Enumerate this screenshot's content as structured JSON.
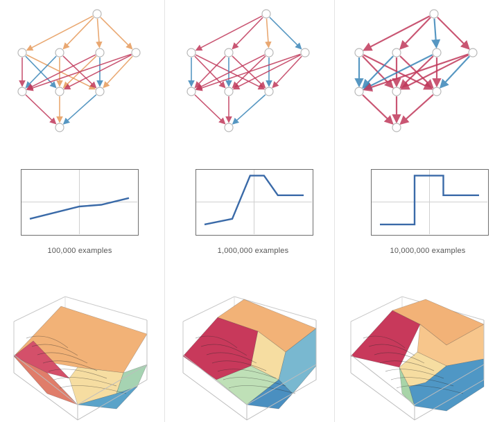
{
  "columns": [
    {
      "caption": "100,000 examples",
      "line_values": [
        [
          0,
          0.2
        ],
        [
          0.5,
          0.42
        ],
        [
          0.72,
          0.45
        ],
        [
          1,
          0.57
        ]
      ]
    },
    {
      "caption": "1,000,000 examples",
      "line_values": [
        [
          0,
          0.1
        ],
        [
          0.28,
          0.2
        ],
        [
          0.46,
          0.97
        ],
        [
          0.6,
          0.97
        ],
        [
          0.74,
          0.62
        ],
        [
          1,
          0.62
        ]
      ]
    },
    {
      "caption": "10,000,000 examples",
      "line_values": [
        [
          0,
          0.1
        ],
        [
          0.35,
          0.1
        ],
        [
          0.35,
          0.97
        ],
        [
          0.64,
          0.97
        ],
        [
          0.64,
          0.62
        ],
        [
          1,
          0.62
        ]
      ]
    }
  ],
  "colors": {
    "red": "#c0395b",
    "orange": "#e69a5a",
    "blue": "#3a86b8",
    "gray": "#b8b8b8",
    "line": "#3a6aa8"
  }
}
